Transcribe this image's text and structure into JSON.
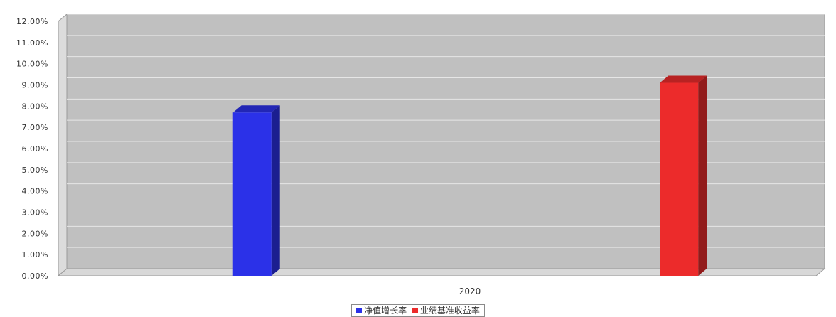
{
  "chart_data": {
    "type": "bar",
    "categories": [
      "2020"
    ],
    "series": [
      {
        "name": "净值增长率",
        "values": [
          7.7
        ],
        "color": "#2b31e8"
      },
      {
        "name": "业绩基准收益率",
        "values": [
          9.1
        ],
        "color": "#ec2b2b"
      }
    ],
    "y_ticks": [
      "0.00%",
      "1.00%",
      "2.00%",
      "3.00%",
      "4.00%",
      "5.00%",
      "6.00%",
      "7.00%",
      "8.00%",
      "9.00%",
      "10.00%",
      "11.00%",
      "12.00%"
    ],
    "ylim": [
      0,
      12
    ],
    "grid": true,
    "legend_position": "bottom-center",
    "style": "3d",
    "plot_background": "#c0c0c0"
  }
}
